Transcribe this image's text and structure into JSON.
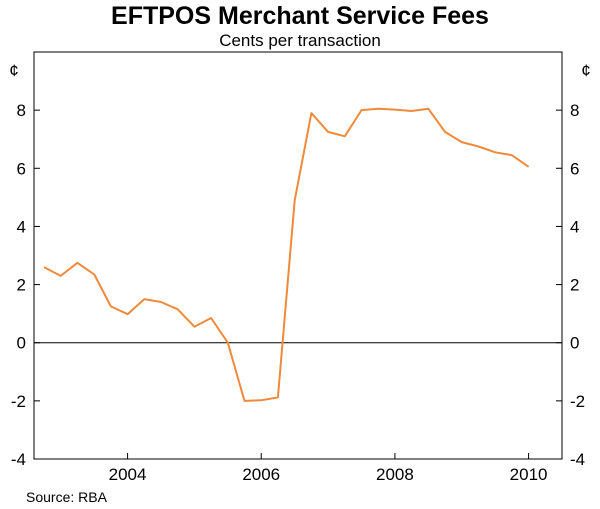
{
  "chart_data": {
    "type": "line",
    "title": "EFTPOS Merchant Service Fees",
    "subtitle": "Cents per transaction",
    "y_unit_label": "¢",
    "source": "Source: RBA",
    "ylim": [
      -4,
      10
    ],
    "yticks": [
      "-4",
      "-2",
      "0",
      "2",
      "4",
      "6",
      "8"
    ],
    "ytick_values": [
      -4,
      -2,
      0,
      2,
      4,
      6,
      8
    ],
    "xlim": [
      2002.6,
      2010.5
    ],
    "xticks": [
      "2004",
      "2006",
      "2008",
      "2010"
    ],
    "xtick_values": [
      2004,
      2006,
      2008,
      2010
    ],
    "grid": false,
    "zero_line": true,
    "series": [
      {
        "color": "#ef8a3c",
        "x": [
          2002.75,
          2003.0,
          2003.25,
          2003.5,
          2003.75,
          2004.0,
          2004.25,
          2004.5,
          2004.75,
          2005.0,
          2005.25,
          2005.5,
          2005.75,
          2006.0,
          2006.25,
          2006.5,
          2006.75,
          2007.0,
          2007.25,
          2007.5,
          2007.75,
          2008.0,
          2008.25,
          2008.5,
          2008.75,
          2009.0,
          2009.25,
          2009.5,
          2009.75,
          2010.0,
          2010.25
        ],
        "y": [
          2.6,
          2.3,
          2.75,
          2.35,
          1.25,
          0.98,
          1.5,
          1.4,
          1.15,
          0.55,
          0.85,
          0.0,
          -2.0,
          -1.98,
          -1.88,
          4.9,
          7.9,
          7.25,
          7.1,
          8.0,
          8.05,
          8.02,
          7.97,
          8.05,
          7.25,
          6.9,
          6.75,
          6.55,
          6.45,
          6.05,
          null
        ]
      }
    ]
  }
}
